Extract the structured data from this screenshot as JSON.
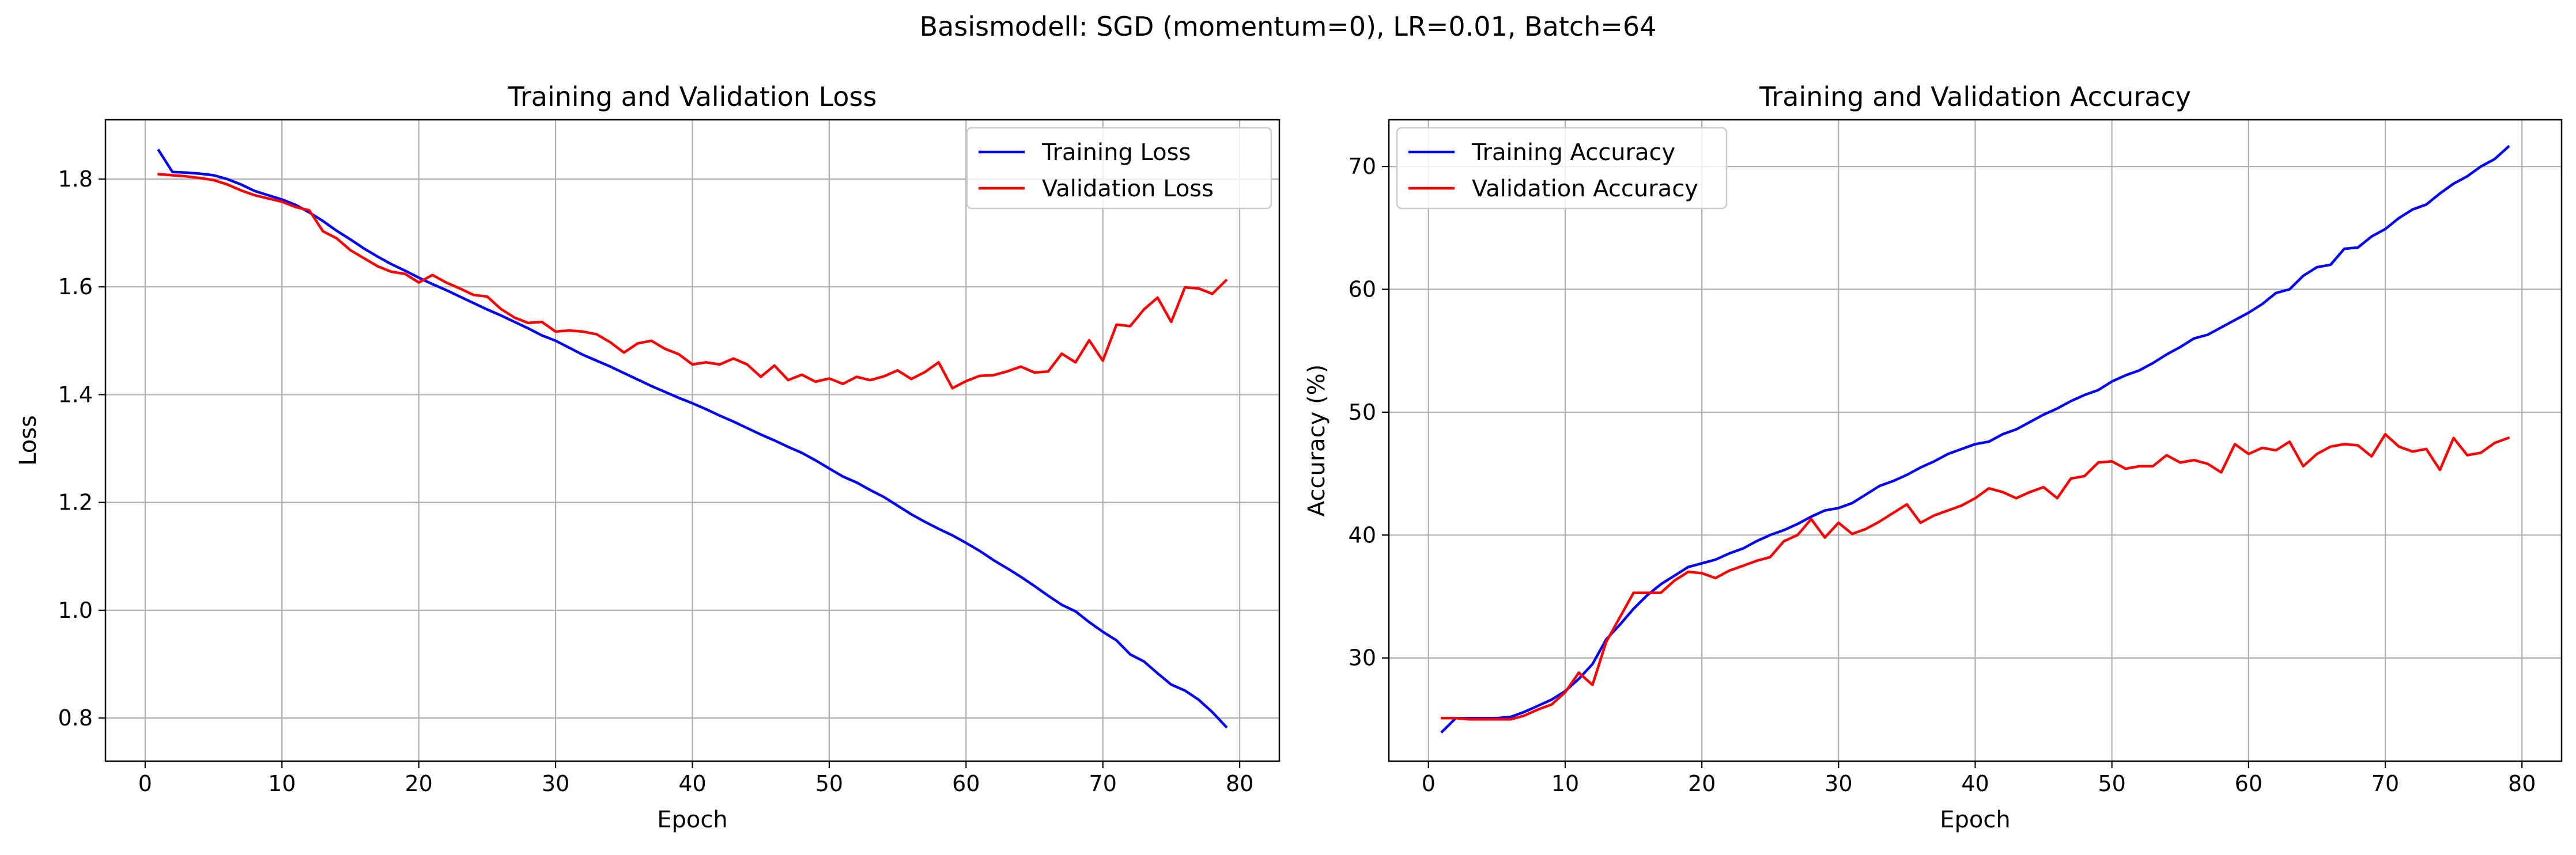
{
  "figure": {
    "suptitle": "Basismodell: SGD (momentum=0), LR=0.01, Batch=64"
  },
  "chart_data": [
    {
      "type": "line",
      "title": "Training and Validation Loss",
      "xlabel": "Epoch",
      "ylabel": "Loss",
      "xlim": [
        -2.9,
        82.9
      ],
      "ylim": [
        0.72,
        1.91
      ],
      "xticks": [
        0,
        10,
        20,
        30,
        40,
        50,
        60,
        70,
        80
      ],
      "yticks": [
        0.8,
        1.0,
        1.2,
        1.4,
        1.6,
        1.8
      ],
      "ytick_labels": [
        "0.8",
        "1.0",
        "1.2",
        "1.4",
        "1.6",
        "1.8"
      ],
      "grid": true,
      "legend_position": "upper right",
      "x": [
        1,
        2,
        3,
        4,
        5,
        6,
        7,
        8,
        9,
        10,
        11,
        12,
        13,
        14,
        15,
        16,
        17,
        18,
        19,
        20,
        21,
        22,
        23,
        24,
        25,
        26,
        27,
        28,
        29,
        30,
        31,
        32,
        33,
        34,
        35,
        36,
        37,
        38,
        39,
        40,
        41,
        42,
        43,
        44,
        45,
        46,
        47,
        48,
        49,
        50,
        51,
        52,
        53,
        54,
        55,
        56,
        57,
        58,
        59,
        60,
        61,
        62,
        63,
        64,
        65,
        66,
        67,
        68,
        69,
        70,
        71,
        72,
        73,
        74,
        75,
        76,
        77,
        78,
        79
      ],
      "series": [
        {
          "name": "Training Loss",
          "color": "#0000ff",
          "values": [
            1.853,
            1.813,
            1.812,
            1.81,
            1.807,
            1.8,
            1.79,
            1.778,
            1.77,
            1.762,
            1.752,
            1.738,
            1.722,
            1.704,
            1.688,
            1.671,
            1.656,
            1.642,
            1.63,
            1.617,
            1.605,
            1.594,
            1.582,
            1.57,
            1.558,
            1.547,
            1.535,
            1.523,
            1.51,
            1.5,
            1.487,
            1.474,
            1.463,
            1.452,
            1.44,
            1.428,
            1.416,
            1.405,
            1.394,
            1.384,
            1.373,
            1.361,
            1.35,
            1.338,
            1.326,
            1.315,
            1.303,
            1.292,
            1.278,
            1.263,
            1.248,
            1.237,
            1.223,
            1.21,
            1.194,
            1.178,
            1.164,
            1.151,
            1.139,
            1.125,
            1.11,
            1.093,
            1.078,
            1.062,
            1.045,
            1.027,
            1.01,
            0.998,
            0.978,
            0.96,
            0.944,
            0.918,
            0.905,
            0.883,
            0.862,
            0.851,
            0.834,
            0.811,
            0.784
          ]
        },
        {
          "name": "Validation Loss",
          "color": "#ff0000",
          "values": [
            1.809,
            1.807,
            1.805,
            1.802,
            1.798,
            1.79,
            1.779,
            1.77,
            1.764,
            1.758,
            1.748,
            1.742,
            1.703,
            1.69,
            1.668,
            1.653,
            1.638,
            1.628,
            1.624,
            1.608,
            1.622,
            1.608,
            1.597,
            1.585,
            1.582,
            1.559,
            1.543,
            1.533,
            1.535,
            1.517,
            1.519,
            1.517,
            1.512,
            1.497,
            1.478,
            1.495,
            1.5,
            1.485,
            1.475,
            1.456,
            1.46,
            1.456,
            1.467,
            1.456,
            1.433,
            1.454,
            1.427,
            1.437,
            1.424,
            1.43,
            1.42,
            1.433,
            1.427,
            1.434,
            1.445,
            1.429,
            1.442,
            1.46,
            1.412,
            1.425,
            1.435,
            1.436,
            1.443,
            1.452,
            1.441,
            1.443,
            1.476,
            1.46,
            1.501,
            1.463,
            1.53,
            1.527,
            1.558,
            1.58,
            1.535,
            1.599,
            1.597,
            1.587,
            1.612
          ]
        }
      ]
    },
    {
      "type": "line",
      "title": "Training and Validation Accuracy",
      "xlabel": "Epoch",
      "ylabel": "Accuracy (%)",
      "xlim": [
        -2.9,
        82.9
      ],
      "ylim": [
        21.6,
        73.8
      ],
      "xticks": [
        0,
        10,
        20,
        30,
        40,
        50,
        60,
        70,
        80
      ],
      "yticks": [
        30,
        40,
        50,
        60,
        70
      ],
      "ytick_labels": [
        "30",
        "40",
        "50",
        "60",
        "70"
      ],
      "grid": true,
      "legend_position": "upper left",
      "x": [
        1,
        2,
        3,
        4,
        5,
        6,
        7,
        8,
        9,
        10,
        11,
        12,
        13,
        14,
        15,
        16,
        17,
        18,
        19,
        20,
        21,
        22,
        23,
        24,
        25,
        26,
        27,
        28,
        29,
        30,
        31,
        32,
        33,
        34,
        35,
        36,
        37,
        38,
        39,
        40,
        41,
        42,
        43,
        44,
        45,
        46,
        47,
        48,
        49,
        50,
        51,
        52,
        53,
        54,
        55,
        56,
        57,
        58,
        59,
        60,
        61,
        62,
        63,
        64,
        65,
        66,
        67,
        68,
        69,
        70,
        71,
        72,
        73,
        74,
        75,
        76,
        77,
        78,
        79
      ],
      "series": [
        {
          "name": "Training Accuracy",
          "color": "#0000ff",
          "values": [
            24.0,
            25.1,
            25.1,
            25.1,
            25.1,
            25.2,
            25.6,
            26.1,
            26.6,
            27.3,
            28.3,
            29.5,
            31.5,
            32.7,
            34.0,
            35.1,
            36.0,
            36.7,
            37.4,
            37.7,
            38.0,
            38.5,
            38.9,
            39.5,
            40.0,
            40.4,
            40.9,
            41.5,
            42.0,
            42.2,
            42.6,
            43.3,
            44.0,
            44.4,
            44.9,
            45.5,
            46.0,
            46.6,
            47.0,
            47.4,
            47.6,
            48.2,
            48.6,
            49.2,
            49.8,
            50.3,
            50.9,
            51.4,
            51.8,
            52.5,
            53.0,
            53.4,
            54.0,
            54.7,
            55.3,
            56.0,
            56.3,
            56.9,
            57.5,
            58.1,
            58.8,
            59.7,
            60.0,
            61.1,
            61.8,
            62.0,
            63.3,
            63.4,
            64.3,
            64.9,
            65.8,
            66.5,
            66.9,
            67.8,
            68.6,
            69.2,
            70.0,
            70.6,
            71.6
          ]
        },
        {
          "name": "Validation Accuracy",
          "color": "#ff0000",
          "values": [
            25.1,
            25.1,
            25.0,
            25.0,
            25.0,
            25.0,
            25.3,
            25.8,
            26.2,
            27.2,
            28.8,
            27.8,
            31.3,
            33.3,
            35.3,
            35.3,
            35.3,
            36.3,
            37.0,
            36.9,
            36.5,
            37.1,
            37.5,
            37.9,
            38.2,
            39.5,
            40.0,
            41.3,
            39.8,
            41.0,
            40.1,
            40.5,
            41.1,
            41.8,
            42.5,
            41.0,
            41.6,
            42.0,
            42.4,
            43.0,
            43.8,
            43.5,
            43.0,
            43.5,
            43.9,
            43.0,
            44.6,
            44.8,
            45.9,
            46.0,
            45.4,
            45.6,
            45.6,
            46.5,
            45.9,
            46.1,
            45.8,
            45.1,
            47.4,
            46.6,
            47.1,
            46.9,
            47.6,
            45.6,
            46.6,
            47.2,
            47.4,
            47.3,
            46.4,
            48.2,
            47.2,
            46.8,
            47.0,
            45.3,
            47.9,
            46.5,
            46.7,
            47.5,
            47.9
          ]
        }
      ]
    }
  ]
}
